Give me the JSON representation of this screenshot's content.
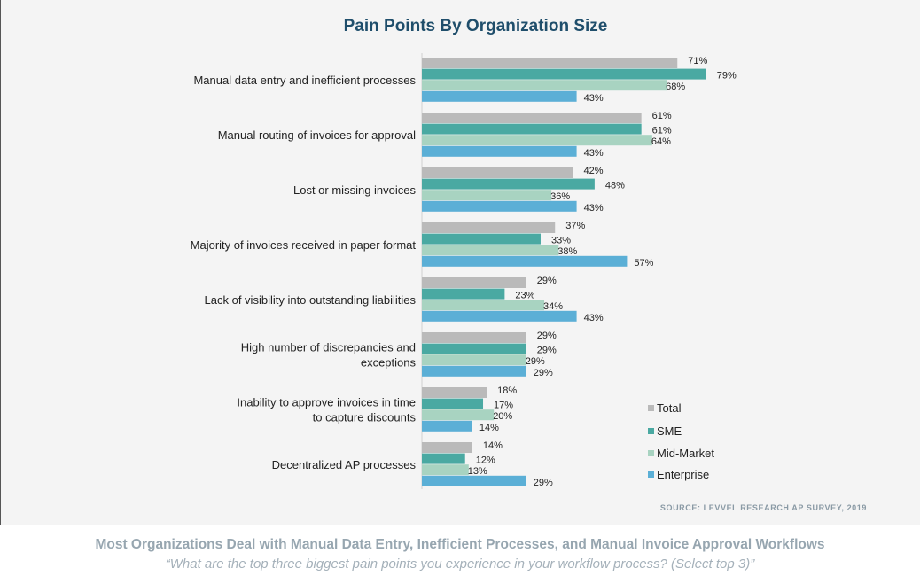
{
  "chart_data": {
    "type": "bar",
    "orientation": "horizontal",
    "title": "Pain Points By Organization Size",
    "categories": [
      [
        "Manual data entry and inefficient processes"
      ],
      [
        "Manual routing of invoices for approval"
      ],
      [
        "Lost or missing invoices"
      ],
      [
        "Majority of invoices received in paper format"
      ],
      [
        "Lack of visibility into outstanding liabilities"
      ],
      [
        "High number of discrepancies and",
        "exceptions"
      ],
      [
        "Inability to approve invoices in time",
        "to capture discounts"
      ],
      [
        "Decentralized AP processes"
      ]
    ],
    "series": [
      {
        "name": "Total",
        "color": "#bababa",
        "values": [
          71,
          61,
          42,
          37,
          29,
          29,
          18,
          14
        ]
      },
      {
        "name": "SME",
        "color": "#4aa9a2",
        "values": [
          79,
          61,
          48,
          33,
          23,
          29,
          17,
          12
        ]
      },
      {
        "name": "Mid-Market",
        "color": "#a8d3c1",
        "values": [
          68,
          64,
          36,
          38,
          34,
          29,
          20,
          13
        ]
      },
      {
        "name": "Enterprise",
        "color": "#5bafd6",
        "values": [
          43,
          43,
          43,
          57,
          43,
          29,
          14,
          29
        ]
      }
    ],
    "value_suffix": "%",
    "legend": "bottom-right",
    "grid": false
  },
  "source": "SOURCE: LEVVEL RESEARCH AP SURVEY, 2019",
  "caption": "Most Organizations Deal with Manual Data Entry, Inefficient Processes, and Manual Invoice Approval Workflows",
  "question": "“What are the top three biggest pain points you experience in your workflow process? (Select top 3)”"
}
